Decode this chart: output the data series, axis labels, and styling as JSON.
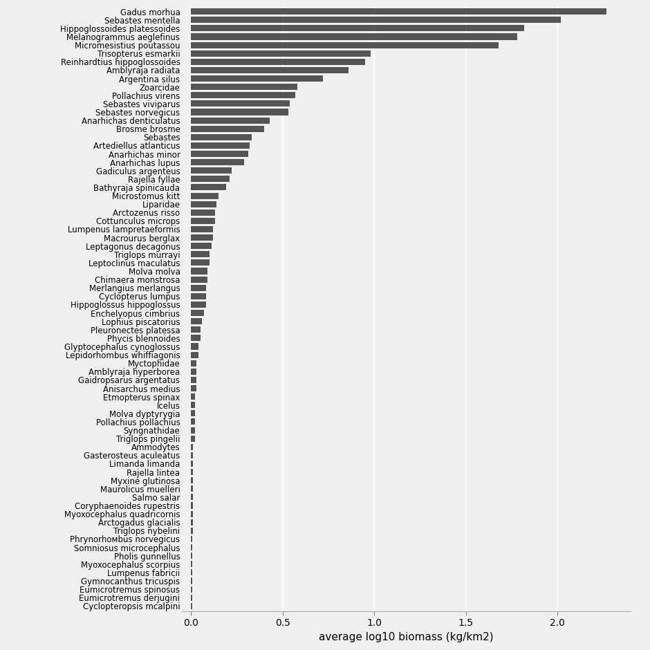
{
  "species": [
    "Gadus morhua",
    "Sebastes mentella",
    "Hippoglossoides platessoides",
    "Melanogrammus aeglefinus",
    "Micromesistius poutassou",
    "Trisopterus esmarkii",
    "Reinhardtius hippoglossoides",
    "Amblyraja radiata",
    "Argentina silus",
    "Zoarcidae",
    "Pollachius virens",
    "Sebastes viviparus",
    "Sebastes norvegicus",
    "Anarhichas denticulatus",
    "Brosme brosme",
    "Sebastes",
    "Artediellus atlanticus",
    "Anarhichas minor",
    "Anarhichas lupus",
    "Gadiculus argenteus",
    "Rajella fyllae",
    "Bathyraja spinicauda",
    "Microstomus kitt",
    "Liparidae",
    "Arctozenus risso",
    "Cottunculus microps",
    "Lumpenus lampretaeformis",
    "Macrourus berglax",
    "Leptagonus decagonus",
    "Triglops murrayi",
    "Leptoclinus maculatus",
    "Molva molva",
    "Chimaera monstrosa",
    "Merlangius merlangus",
    "Cyclopterus lumpus",
    "Hippoglossus hippoglossus",
    "Enchelyopus cimbrius",
    "Lophius piscatorius",
    "Pleuronectes platessa",
    "Phycis blennoides",
    "Glyptocephalus cynoglossus",
    "Lepidorhombus whiffiagonis",
    "Myctophidae",
    "Amblyraja hyperborea",
    "Gaidropsarus argentatus",
    "Anisarchus medius",
    "Etmopterus spinax",
    "Icelus",
    "Molva dyptyrygia",
    "Pollachius pollachius",
    "Syngnathidae",
    "Triglops pingelii",
    "Ammodytes",
    "Gasterosteus aculeatus",
    "Limanda limanda",
    "Rajella lintea",
    "Myxine glutinosa",
    "Maurolicus muelleri",
    "Salmo salar",
    "Coryphaenoides rupestris",
    "Myoxocephalus quadricornis",
    "Arctogadus glacialis",
    "Triglops nybelini",
    "Phrynorhoмbus norvegicus",
    "Somniosus microcephalus",
    "Pholis gunnellus",
    "Myoxocephalus scorpius",
    "Lumpenus fabricii",
    "Gymnocanthus tricuspis",
    "Eumicrotremus spinosus",
    "Eumicrotremus derjugini",
    "Cyclopteropsis mcalpini"
  ],
  "values": [
    2.27,
    2.02,
    1.82,
    1.78,
    1.68,
    0.98,
    0.95,
    0.86,
    0.72,
    0.58,
    0.57,
    0.54,
    0.53,
    0.43,
    0.4,
    0.33,
    0.32,
    0.31,
    0.29,
    0.22,
    0.21,
    0.19,
    0.15,
    0.14,
    0.13,
    0.13,
    0.12,
    0.12,
    0.11,
    0.1,
    0.1,
    0.09,
    0.09,
    0.08,
    0.08,
    0.08,
    0.07,
    0.06,
    0.05,
    0.05,
    0.04,
    0.04,
    0.03,
    0.03,
    0.03,
    0.03,
    0.02,
    0.02,
    0.02,
    0.02,
    0.02,
    0.02,
    0.01,
    0.01,
    0.01,
    0.01,
    0.01,
    0.01,
    0.01,
    0.01,
    0.01,
    0.01,
    0.01,
    0.005,
    0.005,
    0.005,
    0.005,
    0.005,
    0.005,
    0.005,
    0.005,
    0.005
  ],
  "bar_color": "#555555",
  "background_color": "#f0f0f0",
  "plot_bg_color": "#f0f0f0",
  "grid_color": "#ffffff",
  "xlabel": "average log10 biomass (kg/km2)",
  "xlim": [
    -0.05,
    2.4
  ],
  "xlabel_fontsize": 11,
  "tick_fontsize": 8.5,
  "xticks": [
    0.0,
    0.5,
    1.0,
    1.5,
    2.0
  ]
}
